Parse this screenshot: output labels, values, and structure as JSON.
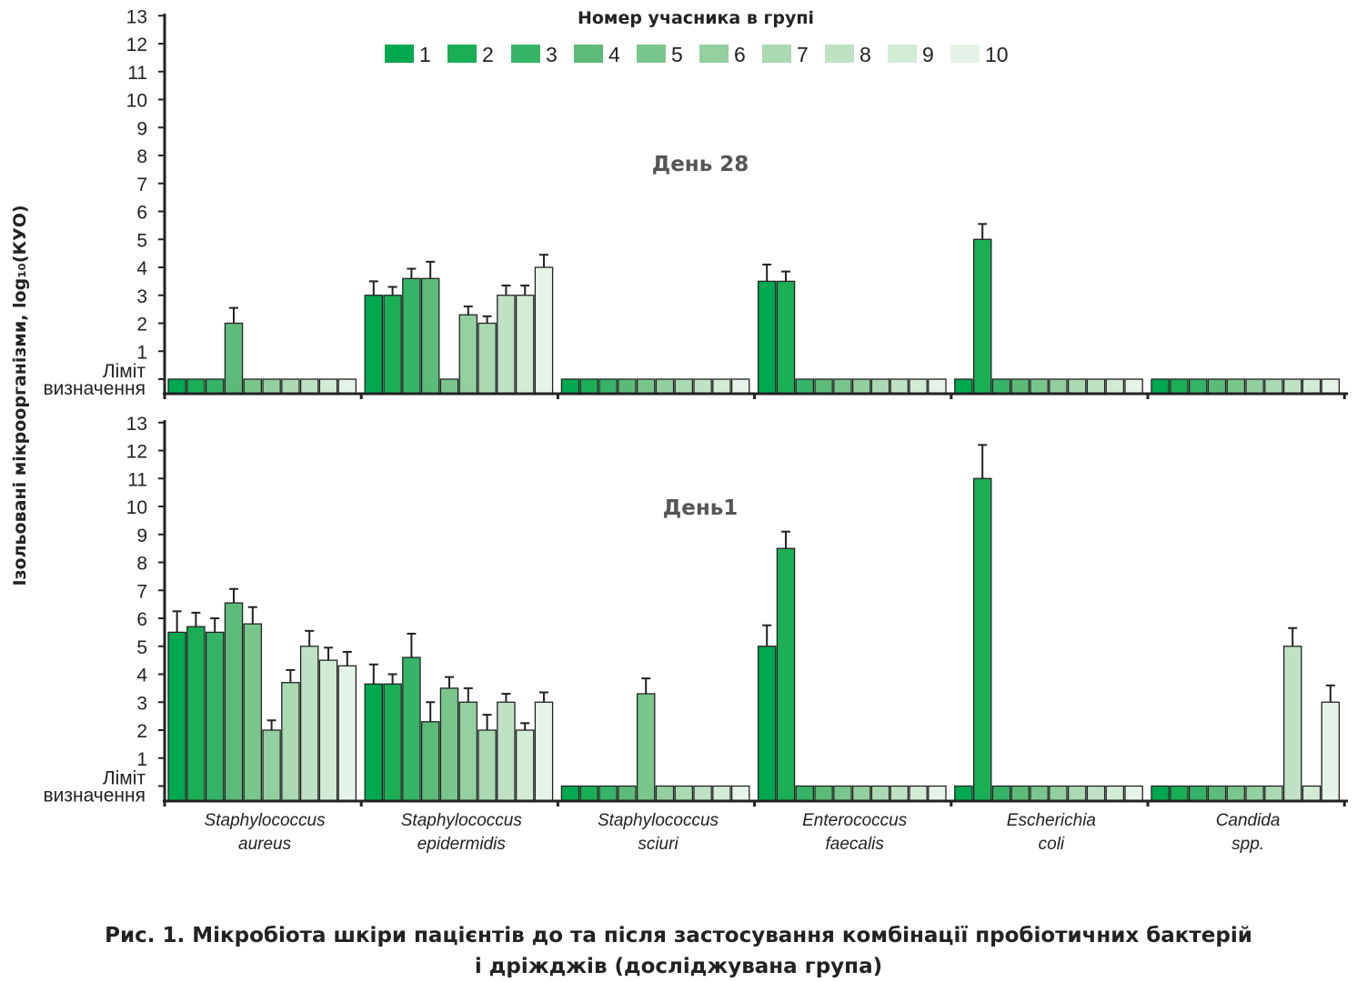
{
  "chart_data": {
    "type": "bar",
    "legend_title": "Номер учасника в групі",
    "legend_placement": "top-center",
    "series_names": [
      "1",
      "2",
      "3",
      "4",
      "5",
      "6",
      "7",
      "8",
      "9",
      "10"
    ],
    "colors": [
      "#00a84f",
      "#1aae55",
      "#35b468",
      "#5cbb78",
      "#79c68c",
      "#93cf9f",
      "#aad9b2",
      "#bfe2c4",
      "#d2ebd5",
      "#e6f3e8"
    ],
    "ylabel": "Ізольовані мікроорганізми, log₁₀(КУО)",
    "y_ticks": [
      "1",
      "2",
      "3",
      "4",
      "5",
      "6",
      "7",
      "8",
      "9",
      "10",
      "11",
      "12",
      "13"
    ],
    "limit_label": [
      "Ліміт",
      "визначення"
    ],
    "ylim": [
      0,
      13
    ],
    "categories": [
      [
        "Staphylococcus",
        "aureus"
      ],
      [
        "Staphylococcus",
        "epidermidis"
      ],
      [
        "Staphylococcus",
        "sciuri"
      ],
      [
        "Enterococcus",
        "faecalis"
      ],
      [
        "Escherichia",
        "coli"
      ],
      [
        "Candida",
        "spp."
      ]
    ],
    "panels": [
      {
        "title": "День 28",
        "values": [
          [
            0,
            0,
            0,
            2,
            0,
            0,
            0,
            0,
            0,
            0
          ],
          [
            3,
            3,
            3.6,
            3.6,
            0,
            2.3,
            2,
            3,
            3,
            4
          ],
          [
            0,
            0,
            0,
            0,
            0,
            0,
            0,
            0,
            0,
            0
          ],
          [
            3.5,
            3.5,
            0,
            0,
            0,
            0,
            0,
            0,
            0,
            0
          ],
          [
            0,
            5,
            0,
            0,
            0,
            0,
            0,
            0,
            0,
            0
          ],
          [
            0,
            0,
            0,
            0,
            0,
            0,
            0,
            0,
            0,
            0
          ]
        ],
        "errors": [
          [
            0,
            0,
            0,
            0.55,
            0,
            0,
            0,
            0,
            0,
            0
          ],
          [
            0.5,
            0.3,
            0.35,
            0.6,
            0,
            0.3,
            0.25,
            0.35,
            0.35,
            0.45
          ],
          [
            0,
            0,
            0,
            0,
            0,
            0,
            0,
            0,
            0,
            0
          ],
          [
            0.6,
            0.35,
            0,
            0,
            0,
            0,
            0,
            0,
            0,
            0
          ],
          [
            0,
            0.55,
            0,
            0,
            0,
            0,
            0,
            0,
            0,
            0
          ],
          [
            0,
            0,
            0,
            0,
            0,
            0,
            0,
            0,
            0,
            0
          ]
        ]
      },
      {
        "title": "День1",
        "values": [
          [
            5.5,
            5.7,
            5.5,
            6.55,
            5.8,
            2,
            3.7,
            5,
            4.5,
            4.3
          ],
          [
            3.65,
            3.65,
            4.6,
            2.3,
            3.5,
            3,
            2,
            3,
            2,
            3
          ],
          [
            0,
            0,
            0,
            0,
            3.3,
            0,
            0,
            0,
            0,
            0
          ],
          [
            5,
            8.5,
            0,
            0,
            0,
            0,
            0,
            0,
            0,
            0
          ],
          [
            0,
            11,
            0,
            0,
            0,
            0,
            0,
            0,
            0,
            0
          ],
          [
            0,
            0,
            0,
            0,
            0,
            0,
            0,
            5,
            0,
            3
          ]
        ],
        "errors": [
          [
            0.75,
            0.5,
            0.5,
            0.5,
            0.6,
            0.35,
            0.45,
            0.55,
            0.45,
            0.5
          ],
          [
            0.7,
            0.35,
            0.85,
            0.7,
            0.4,
            0.5,
            0.55,
            0.3,
            0.25,
            0.35
          ],
          [
            0,
            0,
            0,
            0,
            0.55,
            0,
            0,
            0,
            0,
            0
          ],
          [
            0.75,
            0.6,
            0,
            0,
            0,
            0,
            0,
            0,
            0,
            0
          ],
          [
            0,
            1.2,
            0,
            0,
            0,
            0,
            0,
            0,
            0,
            0
          ],
          [
            0,
            0,
            0,
            0,
            0,
            0,
            0,
            0.65,
            0,
            0.6
          ]
        ]
      }
    ]
  },
  "caption": {
    "line1": "Рис. 1. Мікробіота шкіри пацієнтів до та після застосування комбінації пробіотичних бактерій",
    "line2": "і дріжджів (досліджувана група)"
  }
}
